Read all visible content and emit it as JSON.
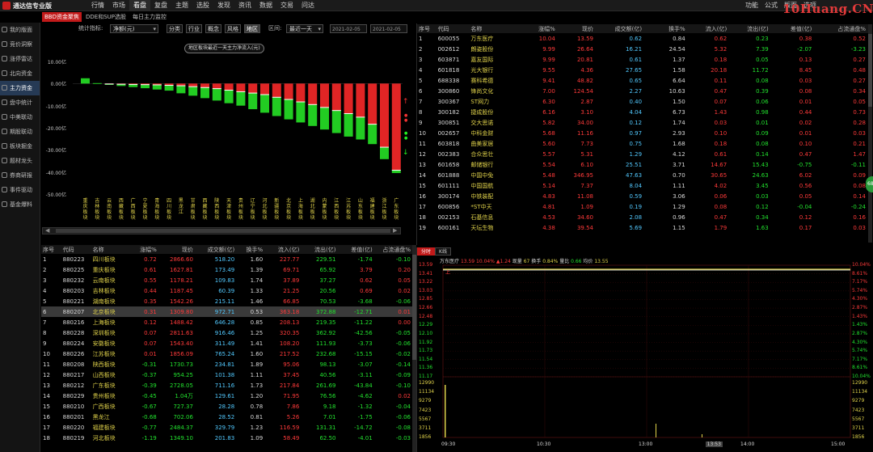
{
  "app": {
    "title": "通达信专业版"
  },
  "menu": [
    "行情",
    "市场",
    "看盘",
    "复盘",
    "主题",
    "选股",
    "发现",
    "资讯",
    "数据",
    "交易",
    "问达"
  ],
  "menu_active": 2,
  "right_menu": [
    "功能",
    "公式",
    "版面",
    "选项"
  ],
  "watermark": "10Huang.CN",
  "subtabs": [
    "BBD资金聚焦",
    "DDE和SUP选股",
    "每日主力监控"
  ],
  "sidebar": [
    "我的版面",
    "竞价洞察",
    "涨停雷达",
    "北向资金",
    "主力资金",
    "盘中统计",
    "中美联动",
    "期股联动",
    "板块掘金",
    "题材龙头",
    "券商研报",
    "事件驱动",
    "基金爆料"
  ],
  "sidebar_active": 4,
  "toolbar": {
    "stat_label": "统计指标:",
    "stat_value": "净额(元)",
    "cats": [
      "分类",
      "行业",
      "概念",
      "风格",
      "地区"
    ],
    "cat_active": 4,
    "period_label": "区间:",
    "period_value": "最近一天",
    "date_from": "2021-02-05",
    "date_to": "2021-02-05"
  },
  "tooltip": "地区板块最近一天主力净流入(元)",
  "chart_data": {
    "type": "bar",
    "title": "",
    "ylabel": "",
    "ylim": [
      -50,
      10
    ],
    "yticks": [
      10,
      0,
      -10,
      -20,
      -30,
      -40,
      -50
    ],
    "ytick_labels": [
      "10.00亿",
      "0.00亿",
      "-10.00亿",
      "-20.00亿",
      "-30.00亿",
      "-40.00亿",
      "-50.00亿"
    ],
    "categories": [
      "重庆板块",
      "吉林板块",
      "云南板块",
      "西藏板块",
      "广西板块",
      "宁夏板块",
      "青海板块",
      "四川板块",
      "黑龙江",
      "甘肃板块",
      "西藏板块",
      "陕西板块",
      "天津板块",
      "贵州板块",
      "辽宁板块",
      "河北板块",
      "新疆板块",
      "北京板块",
      "上海板块",
      "湖北板块",
      "内蒙板块",
      "江西板块",
      "江苏板块",
      "山东板块",
      "福建板块",
      "浙江板块",
      "广东板块"
    ],
    "series": [
      {
        "values": [
          2.4,
          0.2,
          -0.2,
          -0.3,
          -0.4,
          -0.5,
          -0.6,
          -0.8,
          -1.0,
          -1.4,
          -1.8,
          -2.3,
          -3.0,
          -3.7,
          -4.3,
          -5.0,
          -6.2,
          -7.2,
          -8.3,
          -9.5,
          -10.8,
          -12.2,
          -13.6,
          -15.2,
          -18.4,
          -28.8,
          -39.2
        ]
      },
      {
        "values": [
          2.4,
          0.0,
          -0.6,
          -1.1,
          -1.6,
          -2.1,
          -2.7,
          -3.2,
          -4.4,
          -5.5,
          -6.6,
          -7.7,
          -8.9,
          -10.0,
          -11.6,
          -13.2,
          -14.7,
          -16.2,
          -17.6,
          -19.2,
          -20.8,
          -22.4,
          -24.0,
          -25.3,
          -27.4,
          -34.2,
          -40.5
        ]
      }
    ]
  },
  "left_table": {
    "headers": [
      "序号",
      "代码",
      "名称",
      "涨幅%",
      "现价",
      "成交额(亿)",
      "换手%",
      "流入(亿)",
      "流出(亿)",
      "差值(亿)",
      "占流通盘%"
    ],
    "highlight": 5,
    "rows": [
      [
        "1",
        "880223",
        "四川板块",
        "0.72",
        "2866.60",
        "518.20",
        "1.60",
        "227.77",
        "229.51",
        "-1.74",
        "-0.10"
      ],
      [
        "2",
        "880225",
        "重庆板块",
        "0.61",
        "1627.81",
        "173.49",
        "1.39",
        "69.71",
        "65.92",
        "3.79",
        "0.20"
      ],
      [
        "3",
        "880232",
        "云南板块",
        "0.55",
        "1178.21",
        "109.83",
        "1.74",
        "37.89",
        "37.27",
        "0.62",
        "0.05"
      ],
      [
        "4",
        "880203",
        "吉林板块",
        "0.44",
        "1187.45",
        "60.39",
        "1.33",
        "21.25",
        "20.56",
        "0.69",
        "0.02"
      ],
      [
        "5",
        "880221",
        "湖南板块",
        "0.35",
        "1542.26",
        "215.11",
        "1.46",
        "66.85",
        "70.53",
        "-3.68",
        "-0.06"
      ],
      [
        "6",
        "880207",
        "北京板块",
        "0.31",
        "1309.80",
        "972.71",
        "0.53",
        "363.18",
        "372.88",
        "-12.71",
        "0.01"
      ],
      [
        "7",
        "880216",
        "上海板块",
        "0.12",
        "1488.42",
        "646.28",
        "0.85",
        "208.13",
        "219.35",
        "-11.22",
        "0.00"
      ],
      [
        "8",
        "880228",
        "深圳板块",
        "0.07",
        "2811.63",
        "916.46",
        "1.25",
        "320.35",
        "362.92",
        "-42.56",
        "-0.05"
      ],
      [
        "9",
        "880224",
        "安徽板块",
        "0.07",
        "1543.40",
        "311.49",
        "1.41",
        "108.20",
        "111.93",
        "-3.73",
        "-0.06"
      ],
      [
        "10",
        "880226",
        "江苏板块",
        "0.01",
        "1856.09",
        "765.24",
        "1.60",
        "217.52",
        "232.68",
        "-15.15",
        "-0.02"
      ],
      [
        "11",
        "880208",
        "陕西板块",
        "-0.31",
        "1730.73",
        "234.81",
        "1.89",
        "95.06",
        "98.13",
        "-3.07",
        "-0.14"
      ],
      [
        "12",
        "880217",
        "山西板块",
        "-0.37",
        "954.25",
        "101.38",
        "1.11",
        "37.45",
        "40.56",
        "-3.11",
        "-0.09"
      ],
      [
        "13",
        "880212",
        "广东板块",
        "-0.39",
        "2728.05",
        "711.16",
        "1.73",
        "217.84",
        "261.69",
        "-43.84",
        "-0.10"
      ],
      [
        "14",
        "880229",
        "贵州板块",
        "-0.45",
        "1.04万",
        "129.61",
        "1.20",
        "71.95",
        "76.56",
        "-4.62",
        "0.02"
      ],
      [
        "15",
        "880210",
        "广西板块",
        "-0.67",
        "727.37",
        "28.28",
        "0.78",
        "7.86",
        "9.18",
        "-1.32",
        "-0.04"
      ],
      [
        "16",
        "880201",
        "黑龙江",
        "-0.68",
        "702.06",
        "28.52",
        "0.81",
        "5.26",
        "7.01",
        "-1.75",
        "-0.06"
      ],
      [
        "17",
        "880220",
        "福建板块",
        "-0.77",
        "2484.37",
        "329.79",
        "1.23",
        "116.59",
        "131.31",
        "-14.72",
        "-0.08"
      ],
      [
        "18",
        "880219",
        "河北板块",
        "-1.19",
        "1349.10",
        "201.83",
        "1.09",
        "58.49",
        "62.50",
        "-4.01",
        "-0.03"
      ]
    ]
  },
  "right_table": {
    "headers": [
      "序号",
      "代码",
      "名称",
      "涨幅%",
      "现价",
      "成交额(亿)",
      "换手%",
      "流入(亿)",
      "流出(亿)",
      "差值(亿)",
      "占流通盘%"
    ],
    "rows": [
      [
        "1",
        "600055",
        "万东医疗",
        "10.04",
        "13.59",
        "0.62",
        "0.84",
        "0.62",
        "0.23",
        "0.38",
        "0.52"
      ],
      [
        "2",
        "002612",
        "朗姿股份",
        "9.99",
        "26.64",
        "16.21",
        "24.54",
        "5.32",
        "7.39",
        "-2.07",
        "-3.23"
      ],
      [
        "3",
        "603871",
        "嘉友国际",
        "9.99",
        "20.81",
        "0.61",
        "1.37",
        "0.18",
        "0.05",
        "0.13",
        "0.27"
      ],
      [
        "4",
        "601818",
        "光大银行",
        "9.55",
        "4.36",
        "27.65",
        "1.58",
        "20.18",
        "11.72",
        "8.45",
        "0.48"
      ],
      [
        "5",
        "688338",
        "赛科希德",
        "9.41",
        "48.82",
        "0.65",
        "6.64",
        "0.11",
        "0.08",
        "0.03",
        "0.27"
      ],
      [
        "6",
        "300860",
        "锋尚文化",
        "7.00",
        "124.54",
        "2.27",
        "10.63",
        "0.47",
        "0.39",
        "0.08",
        "0.34"
      ],
      [
        "7",
        "300367",
        "ST网力",
        "6.30",
        "2.87",
        "0.40",
        "1.50",
        "0.07",
        "0.06",
        "0.01",
        "0.05"
      ],
      [
        "8",
        "300182",
        "捷成股份",
        "6.16",
        "3.10",
        "4.04",
        "6.73",
        "1.43",
        "0.98",
        "0.44",
        "0.73"
      ],
      [
        "9",
        "300851",
        "交大思诺",
        "5.82",
        "34.00",
        "0.12",
        "1.74",
        "0.03",
        "0.01",
        "0.02",
        "0.28"
      ],
      [
        "10",
        "002657",
        "中科金财",
        "5.68",
        "11.16",
        "0.97",
        "2.93",
        "0.10",
        "0.09",
        "0.01",
        "0.03"
      ],
      [
        "11",
        "603818",
        "曲美家居",
        "5.60",
        "7.73",
        "0.75",
        "1.68",
        "0.18",
        "0.08",
        "0.10",
        "0.21"
      ],
      [
        "12",
        "002383",
        "合众思壮",
        "5.57",
        "5.31",
        "1.29",
        "4.12",
        "0.61",
        "0.14",
        "0.47",
        "1.47"
      ],
      [
        "13",
        "601658",
        "邮储银行",
        "5.54",
        "6.10",
        "25.51",
        "3.71",
        "14.67",
        "15.43",
        "-0.75",
        "-0.11"
      ],
      [
        "14",
        "601888",
        "中国中免",
        "5.48",
        "346.95",
        "47.63",
        "0.70",
        "30.65",
        "24.63",
        "6.02",
        "0.09"
      ],
      [
        "15",
        "601111",
        "中国国航",
        "5.14",
        "7.37",
        "8.04",
        "1.11",
        "4.02",
        "3.45",
        "0.56",
        "0.08"
      ],
      [
        "16",
        "300174",
        "中铁装配",
        "4.83",
        "11.08",
        "0.59",
        "3.06",
        "0.06",
        "0.03",
        "0.05",
        "0.14"
      ],
      [
        "17",
        "600856",
        "*ST中天",
        "4.81",
        "1.09",
        "0.19",
        "1.29",
        "0.08",
        "0.12",
        "-0.04",
        "-0.24"
      ],
      [
        "18",
        "002153",
        "石基信息",
        "4.53",
        "34.60",
        "2.08",
        "0.96",
        "0.47",
        "0.34",
        "0.12",
        "0.16"
      ],
      [
        "19",
        "600161",
        "天坛生物",
        "4.38",
        "39.54",
        "5.69",
        "1.15",
        "1.79",
        "1.63",
        "0.17",
        "0.03"
      ]
    ]
  },
  "intraday": {
    "tabs": [
      "分时",
      "K线"
    ],
    "tab_active": 0,
    "stock": "万东医疗",
    "price": "13.59",
    "pct": "10.04%",
    "chg": "▲1.24",
    "amount_label": "现量",
    "amount": "67",
    "turn_label": "换手",
    "turn": "0.84%",
    "ratio_label": "量比",
    "ratio": "0.66",
    "avg_label": "均价",
    "avg": "13.55",
    "up_marker": "上",
    "price_labels": [
      "13.59",
      "13.41",
      "13.22",
      "13.03",
      "12.85",
      "12.66",
      "12.48",
      "12.29",
      "12.10",
      "11.92",
      "11.73",
      "11.54",
      "11.36",
      "11.17"
    ],
    "pct_labels": [
      "10.04%",
      "8.61%",
      "7.17%",
      "5.74%",
      "4.30%",
      "2.87%",
      "1.43%",
      "1.43%",
      "2.87%",
      "4.30%",
      "5.74%",
      "7.17%",
      "8.61%",
      "10.04%"
    ],
    "vol_labels": [
      "12990",
      "11134",
      "9279",
      "7423",
      "5567",
      "3711",
      "1856"
    ],
    "time_labels": [
      "09:30",
      "10:30",
      "13:00",
      "13:53",
      "14:00",
      "15:00"
    ]
  },
  "badge": "68"
}
